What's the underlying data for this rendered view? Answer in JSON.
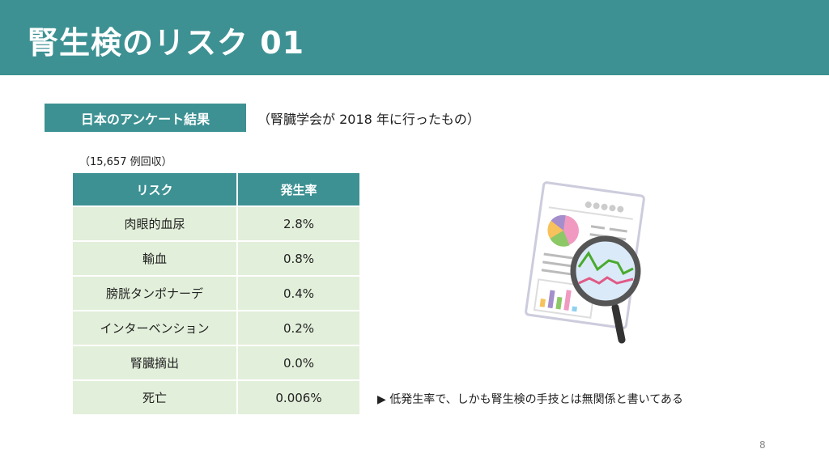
{
  "slide": {
    "title": "腎生検のリスク 01",
    "page_number": "8"
  },
  "section": {
    "tag": "日本のアンケート結果",
    "source_note": "（腎臓学会が 2018 年に行ったもの）",
    "count": "（15,657 例回収）"
  },
  "table": {
    "headers": [
      "リスク",
      "発生率"
    ],
    "rows": [
      [
        "肉眼的血尿",
        "2.8%"
      ],
      [
        "輸血",
        "0.8%"
      ],
      [
        "膀胱タンポナーデ",
        "0.4%"
      ],
      [
        "インターベンション",
        "0.2%"
      ],
      [
        "腎臓摘出",
        "0.0%"
      ],
      [
        "死亡",
        "0.006%"
      ]
    ]
  },
  "bullet": {
    "marker": "▶",
    "text": "低発生率で、しかも腎生検の手技とは無関係と書いてある"
  },
  "colors": {
    "accent": "#3d9193",
    "row_bg": "#e2efda"
  },
  "illustration": "document-with-magnifier-icon"
}
